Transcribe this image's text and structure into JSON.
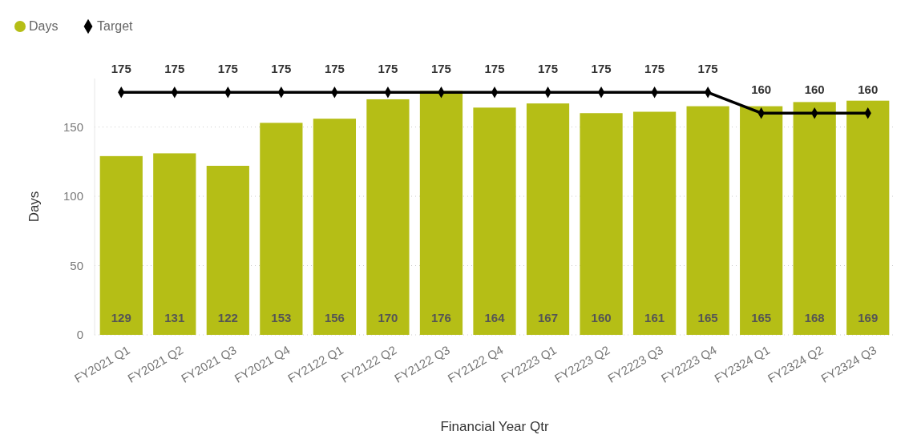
{
  "chart_data": {
    "type": "bar",
    "xlabel": "Financial Year Qtr",
    "ylabel": "Days",
    "categories": [
      "FY2021 Q1",
      "FY2021 Q2",
      "FY2021 Q3",
      "FY2021 Q4",
      "FY2122 Q1",
      "FY2122 Q2",
      "FY2122 Q3",
      "FY2122 Q4",
      "FY2223 Q1",
      "FY2223 Q2",
      "FY2223 Q3",
      "FY2223 Q4",
      "FY2324 Q1",
      "FY2324 Q2",
      "FY2324 Q3"
    ],
    "series": [
      {
        "name": "Days",
        "color": "#b5be16",
        "values": [
          129,
          131,
          122,
          153,
          156,
          170,
          176,
          164,
          167,
          160,
          161,
          165,
          165,
          168,
          169
        ]
      },
      {
        "name": "Target",
        "type": "line",
        "color": "#000000",
        "marker": "diamond",
        "values": [
          175,
          175,
          175,
          175,
          175,
          175,
          175,
          175,
          175,
          175,
          175,
          175,
          160,
          160,
          160
        ]
      }
    ],
    "ylim": [
      0,
      185
    ],
    "yticks": [
      0,
      50,
      100,
      150
    ],
    "grid": "y",
    "legend": "top left",
    "data_labels": true
  }
}
